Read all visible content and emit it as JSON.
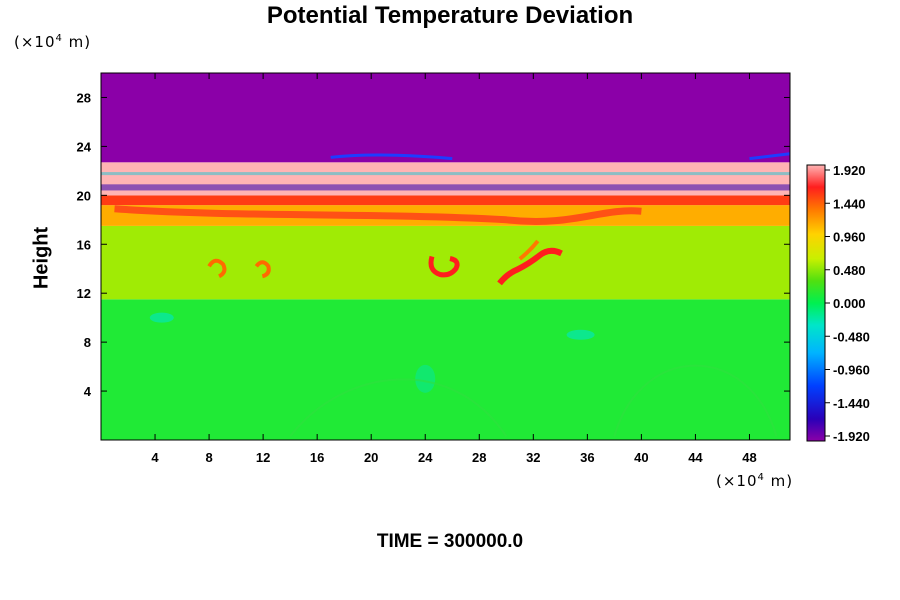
{
  "chart_data": {
    "type": "heatmap",
    "title": "Potential Temperature Deviation",
    "ylabel": "Height",
    "xlabel": "",
    "x_unit": "(×10^4 m)",
    "y_unit": "(×10^4 m)",
    "x_unit_prefix": "(×10",
    "x_unit_exp": "4",
    "x_unit_suffix": " m)",
    "y_unit_prefix": "(×10",
    "y_unit_exp": "4",
    "y_unit_suffix": " m)",
    "xlim": [
      0,
      51
    ],
    "ylim": [
      0,
      30
    ],
    "x_ticks": [
      4,
      8,
      12,
      16,
      20,
      24,
      28,
      32,
      36,
      40,
      44,
      48
    ],
    "y_ticks": [
      4,
      8,
      12,
      16,
      20,
      24,
      28
    ],
    "colorbar": {
      "min": -1.92,
      "max": 1.92,
      "tick_values": [
        1.92,
        1.44,
        0.96,
        0.48,
        0.0,
        -0.48,
        -0.96,
        -1.44,
        -1.92
      ],
      "tick_labels": [
        "1.920",
        "1.440",
        "0.960",
        "0.480",
        "0.000",
        "-0.480",
        "-0.960",
        "-1.440",
        "-1.920"
      ]
    },
    "layers": [
      {
        "y_range": [
          0,
          11.5
        ],
        "value": 0.12
      },
      {
        "y_range": [
          11.5,
          17.5
        ],
        "value": 0.5
      },
      {
        "y_range": [
          17.5,
          19.2
        ],
        "value": 1.1
      },
      {
        "y_range": [
          19.2,
          20.0
        ],
        "value": 1.5
      },
      {
        "y_range": [
          20.0,
          22.7
        ],
        "value": 2.0
      },
      {
        "y_range": [
          22.7,
          30
        ],
        "value": -2.0
      }
    ],
    "footer": "TIME = 300000.0"
  }
}
